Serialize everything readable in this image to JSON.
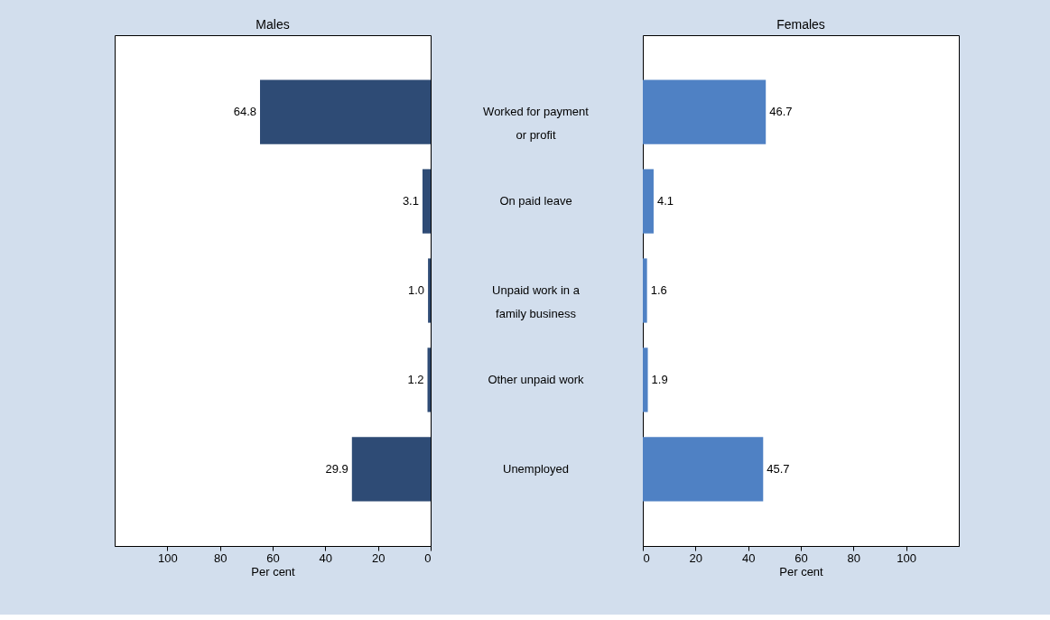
{
  "chart_data": [
    {
      "type": "bar",
      "orientation": "horizontal",
      "title": "Males",
      "xlabel": "Per cent",
      "categories": [
        "Worked for payment or profit",
        "On paid leave",
        "Unpaid work in a family business",
        "Other unpaid work",
        "Unemployed"
      ],
      "values": [
        64.8,
        3.1,
        1.0,
        1.2,
        29.9
      ],
      "value_labels": [
        "64.8",
        "3.1",
        "1.0",
        "1.2",
        "29.9"
      ],
      "color": "#2e4b75",
      "xlim": [
        120,
        0
      ],
      "xticks": [
        100,
        80,
        60,
        40,
        20,
        0
      ],
      "grid": false
    },
    {
      "type": "bar",
      "orientation": "horizontal",
      "title": "Females",
      "xlabel": "Per cent",
      "values": [
        46.7,
        4.1,
        1.6,
        1.9,
        45.7
      ],
      "value_labels": [
        "46.7",
        "4.1",
        "1.6",
        "1.9",
        "45.7"
      ],
      "color": "#4f81c4",
      "xlim": [
        0,
        120
      ],
      "xticks": [
        0,
        20,
        40,
        60,
        80,
        100
      ],
      "tick_labels": "x",
      "grid": false
    }
  ]
}
